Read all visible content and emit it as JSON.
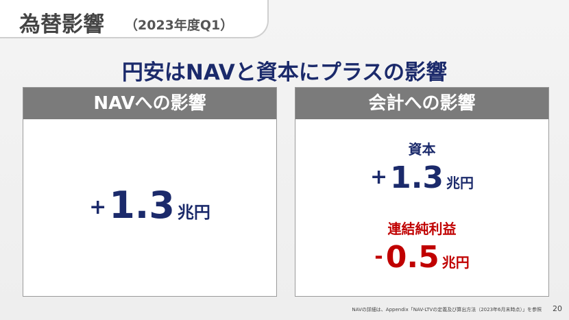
{
  "header": {
    "title": "為替影響",
    "subtitle": "（2023年度Q1）"
  },
  "headline": "円安はNAVと資本にプラスの影響",
  "panels": [
    {
      "title": "NAVへの影響",
      "items": [
        {
          "sign": "+",
          "number": "1.3",
          "unit": "兆円"
        }
      ]
    },
    {
      "title": "会計への影響",
      "items": [
        {
          "label": "資本",
          "sign": "+",
          "number": "1.3",
          "unit": "兆円"
        },
        {
          "label": "連結純利益",
          "sign": "-",
          "number": "0.5",
          "unit": "兆円"
        }
      ]
    }
  ],
  "footnote": "NAVの詳細は、Appendix「NAV-LTVの定義及び算出方法（2023年6月末時点）」を参照",
  "page_number": "20"
}
